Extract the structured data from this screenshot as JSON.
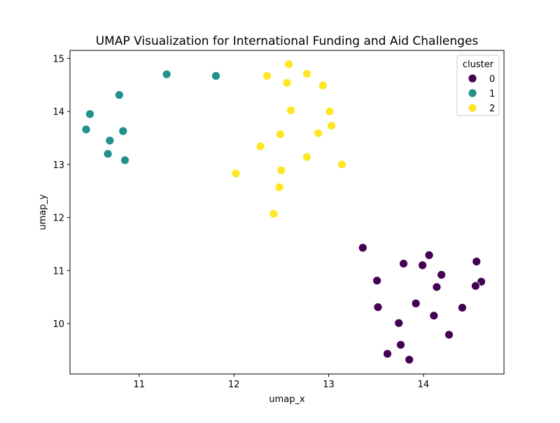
{
  "chart_data": {
    "type": "scatter",
    "title": "UMAP Visualization for International Funding and Aid Challenges",
    "xlabel": "umap_x",
    "ylabel": "umap_y",
    "xlim": [
      10.27,
      14.85
    ],
    "ylim": [
      9.05,
      15.15
    ],
    "xticks": [
      11,
      12,
      13,
      14
    ],
    "yticks": [
      10,
      11,
      12,
      13,
      14,
      15
    ],
    "grid": false,
    "legend": {
      "title": "cluster",
      "placement": "top-right",
      "entries": [
        "0",
        "1",
        "2"
      ]
    },
    "colors": {
      "0": "#440154",
      "1": "#21918c",
      "2": "#fde725"
    },
    "series": [
      {
        "name": "0",
        "points": [
          [
            13.36,
            11.43
          ],
          [
            13.79,
            11.13
          ],
          [
            14.06,
            11.29
          ],
          [
            13.99,
            11.1
          ],
          [
            14.56,
            11.17
          ],
          [
            13.51,
            10.81
          ],
          [
            14.19,
            10.92
          ],
          [
            14.14,
            10.69
          ],
          [
            14.61,
            10.79
          ],
          [
            14.55,
            10.71
          ],
          [
            13.52,
            10.31
          ],
          [
            13.92,
            10.38
          ],
          [
            14.41,
            10.3
          ],
          [
            14.11,
            10.15
          ],
          [
            13.74,
            10.01
          ],
          [
            14.27,
            9.79
          ],
          [
            13.76,
            9.6
          ],
          [
            13.62,
            9.43
          ],
          [
            13.85,
            9.32
          ]
        ]
      },
      {
        "name": "1",
        "points": [
          [
            11.29,
            14.7
          ],
          [
            11.81,
            14.67
          ],
          [
            10.79,
            14.31
          ],
          [
            10.48,
            13.95
          ],
          [
            10.44,
            13.66
          ],
          [
            10.83,
            13.63
          ],
          [
            10.69,
            13.45
          ],
          [
            10.67,
            13.2
          ],
          [
            10.85,
            13.08
          ]
        ]
      },
      {
        "name": "2",
        "points": [
          [
            12.58,
            14.89
          ],
          [
            12.35,
            14.67
          ],
          [
            12.77,
            14.71
          ],
          [
            12.56,
            14.54
          ],
          [
            12.94,
            14.49
          ],
          [
            12.6,
            14.02
          ],
          [
            13.01,
            14.0
          ],
          [
            13.03,
            13.73
          ],
          [
            12.49,
            13.57
          ],
          [
            12.89,
            13.59
          ],
          [
            12.28,
            13.34
          ],
          [
            12.77,
            13.14
          ],
          [
            13.14,
            13.0
          ],
          [
            12.02,
            12.83
          ],
          [
            12.5,
            12.89
          ],
          [
            12.48,
            12.57
          ],
          [
            12.42,
            12.07
          ]
        ]
      }
    ]
  }
}
